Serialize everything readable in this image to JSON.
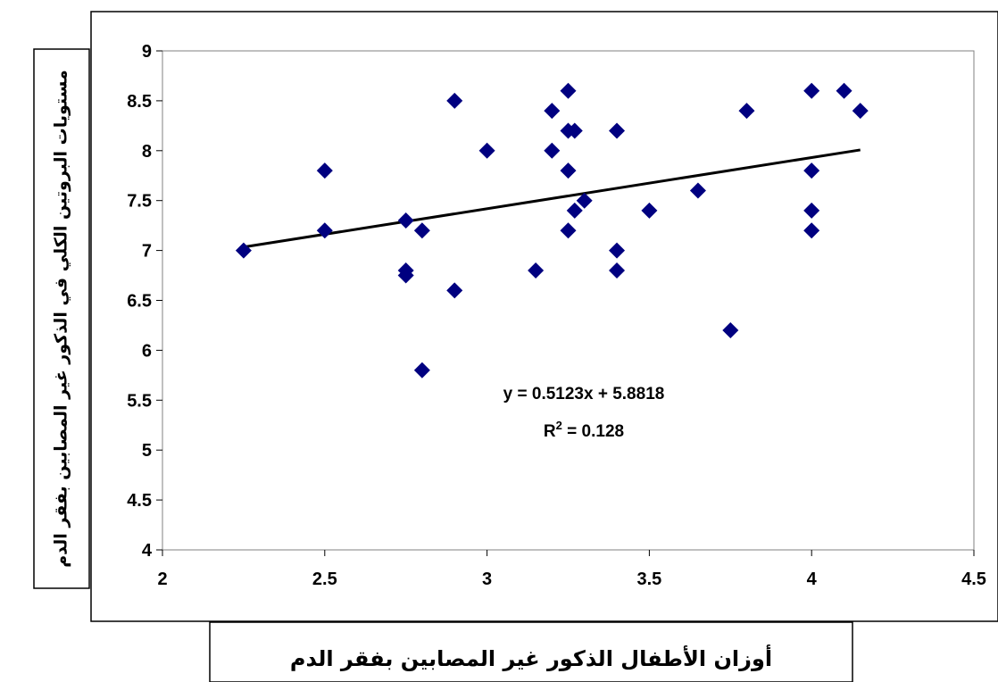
{
  "chart_data": {
    "type": "scatter",
    "xlabel": "أوزان الأطفال الذكور غير المصابين بفقر الدم",
    "ylabel": "مستويات البروتين الكلي في الذكور غير المصابين بفقر الدم",
    "xlim": [
      2,
      4.5
    ],
    "ylim": [
      4,
      9
    ],
    "x_ticks": [
      "2",
      "2.5",
      "3",
      "3.5",
      "4",
      "4.5"
    ],
    "y_ticks": [
      "4",
      "4.5",
      "5",
      "5.5",
      "6",
      "6.5",
      "7",
      "7.5",
      "8",
      "8.5",
      "9"
    ],
    "grid": false,
    "legend": "none",
    "marker_color": "#000080",
    "series": [
      {
        "points": [
          [
            2.25,
            7.0
          ],
          [
            2.5,
            7.8
          ],
          [
            2.5,
            7.2
          ],
          [
            2.75,
            7.3
          ],
          [
            2.75,
            6.8
          ],
          [
            2.75,
            6.75
          ],
          [
            2.8,
            7.2
          ],
          [
            2.8,
            5.8
          ],
          [
            2.9,
            8.5
          ],
          [
            2.9,
            6.6
          ],
          [
            3.0,
            8.0
          ],
          [
            3.15,
            6.8
          ],
          [
            3.2,
            8.4
          ],
          [
            3.2,
            8.0
          ],
          [
            3.25,
            8.6
          ],
          [
            3.25,
            8.2
          ],
          [
            3.27,
            8.2
          ],
          [
            3.25,
            7.8
          ],
          [
            3.27,
            7.4
          ],
          [
            3.3,
            7.5
          ],
          [
            3.25,
            7.2
          ],
          [
            3.4,
            8.2
          ],
          [
            3.4,
            7.0
          ],
          [
            3.4,
            6.8
          ],
          [
            3.5,
            7.4
          ],
          [
            3.65,
            7.6
          ],
          [
            3.75,
            6.2
          ],
          [
            3.8,
            8.4
          ],
          [
            4.0,
            8.6
          ],
          [
            4.0,
            7.8
          ],
          [
            4.0,
            7.4
          ],
          [
            4.0,
            7.2
          ],
          [
            4.1,
            8.6
          ],
          [
            4.15,
            8.4
          ]
        ]
      }
    ],
    "trendline": {
      "slope": 0.5123,
      "intercept": 5.8818,
      "x_range": [
        2.25,
        4.15
      ],
      "equation": "y = 0.5123x + 5.8818",
      "r2_prefix": "R",
      "r2_sup": "2",
      "r2_suffix": " = 0.128"
    }
  }
}
